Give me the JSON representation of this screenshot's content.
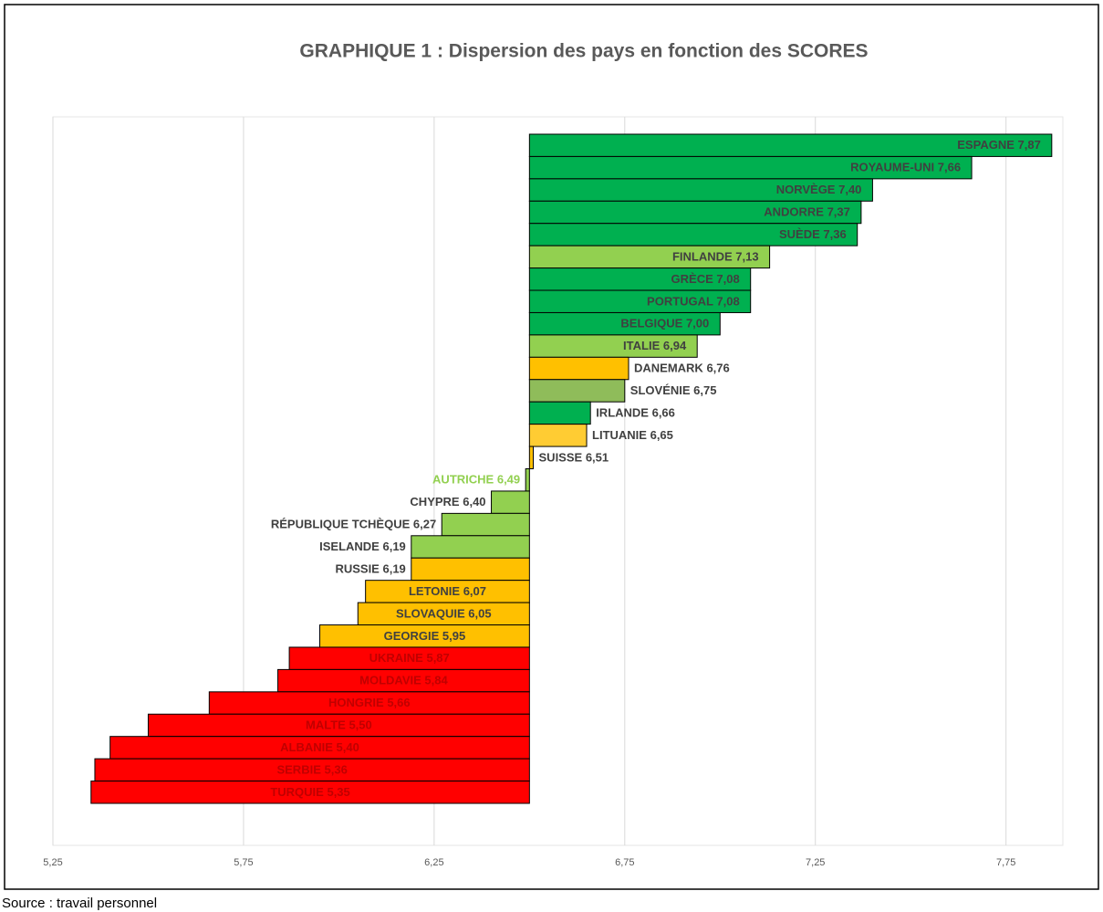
{
  "chart_data": {
    "type": "bar",
    "orientation": "horizontal",
    "title": "GRAPHIQUE 1 : Dispersion des pays en fonction des SCORES",
    "categories": [
      "ESPAGNE",
      "ROYAUME-UNI",
      "NORVÈGE",
      "ANDORRE",
      "SUÈDE",
      "FINLANDE",
      "GRÈCE",
      "PORTUGAL",
      "BELGIQUE",
      "ITALIE",
      "DANEMARK",
      "SLOVÉNIE",
      "IRLANDE",
      "LITUANIE",
      "SUISSE",
      "AUTRICHE",
      "CHYPRE",
      "RÉPUBLIQUE TCHÈQUE",
      "ISELANDE",
      "RUSSIE",
      "LETONIE",
      "SLOVAQUIE",
      "GEORGIE",
      "UKRAINE",
      "MOLDAVIE",
      "HONGRIE",
      "MALTE",
      "ALBANIE",
      "SERBIE",
      "TURQUIE"
    ],
    "values": [
      7.87,
      7.66,
      7.4,
      7.37,
      7.36,
      7.13,
      7.08,
      7.08,
      7.0,
      6.94,
      6.76,
      6.75,
      6.66,
      6.65,
      6.51,
      6.49,
      6.4,
      6.27,
      6.19,
      6.19,
      6.07,
      6.05,
      5.95,
      5.87,
      5.84,
      5.66,
      5.5,
      5.4,
      5.36,
      5.35
    ],
    "value_labels": [
      "7,87",
      "7,66",
      "7,40",
      "7,37",
      "7,36",
      "7,13",
      "7,08",
      "7,08",
      "7,00",
      "6,94",
      "6,76",
      "6,75",
      "6,66",
      "6,65",
      "6,51",
      "6,49",
      "6,40",
      "6,27",
      "6,19",
      "6,19",
      "6,07",
      "6,05",
      "5,95",
      "5,87",
      "5,84",
      "5,66",
      "5,50",
      "5,40",
      "5,36",
      "5,35"
    ],
    "colors": [
      "#00b050",
      "#00b050",
      "#00b050",
      "#00b050",
      "#00b050",
      "#92d050",
      "#00b050",
      "#00b050",
      "#00b050",
      "#92d050",
      "#ffc000",
      "#8fbc5a",
      "#00b050",
      "#ffcc33",
      "#ffc000",
      "#92d050",
      "#92d050",
      "#92d050",
      "#92d050",
      "#ffc000",
      "#ffc000",
      "#ffc000",
      "#ffc000",
      "#ff0000",
      "#ff0000",
      "#ff0000",
      "#ff0000",
      "#ff0000",
      "#ff0000",
      "#ff0000"
    ],
    "label_colors": [
      "#404040",
      "#404040",
      "#404040",
      "#404040",
      "#404040",
      "#404040",
      "#404040",
      "#404040",
      "#404040",
      "#404040",
      "#404040",
      "#404040",
      "#404040",
      "#404040",
      "#404040",
      "#92d050",
      "#404040",
      "#404040",
      "#404040",
      "#404040",
      "#404040",
      "#404040",
      "#404040",
      "#c00000",
      "#c00000",
      "#c00000",
      "#c00000",
      "#c00000",
      "#c00000",
      "#c00000"
    ],
    "xlim": [
      5.25,
      7.88
    ],
    "xticks": [
      {
        "value": 5.25,
        "label": "5,25"
      },
      {
        "value": 5.75,
        "label": "5,75"
      },
      {
        "value": 6.25,
        "label": "6,25"
      },
      {
        "value": 6.75,
        "label": "6,75"
      },
      {
        "value": 7.25,
        "label": "7,25"
      },
      {
        "value": 7.75,
        "label": "7,75"
      }
    ],
    "grid": true
  },
  "source": "Source : travail personnel"
}
